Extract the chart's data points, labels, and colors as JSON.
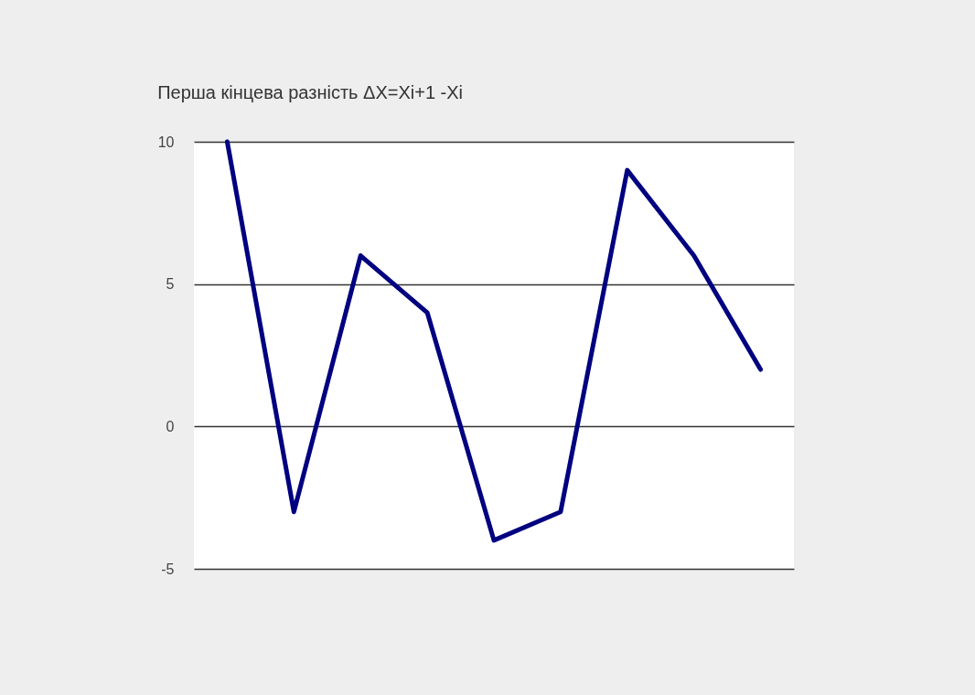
{
  "chart_data": {
    "type": "line",
    "title": "Перша кінцева разність ΔX=Xi+1 -Xi",
    "categories": [
      null,
      null,
      null,
      null,
      null,
      null,
      null,
      null,
      null
    ],
    "series": [
      {
        "color": "#000080",
        "values": [
          10,
          -3,
          6,
          4,
          -4,
          -3,
          9,
          6,
          2
        ]
      }
    ],
    "ylim": [
      -5,
      10
    ],
    "yticks": [
      -5,
      0,
      5,
      10
    ],
    "grid": "y",
    "tick_labels": "y"
  }
}
